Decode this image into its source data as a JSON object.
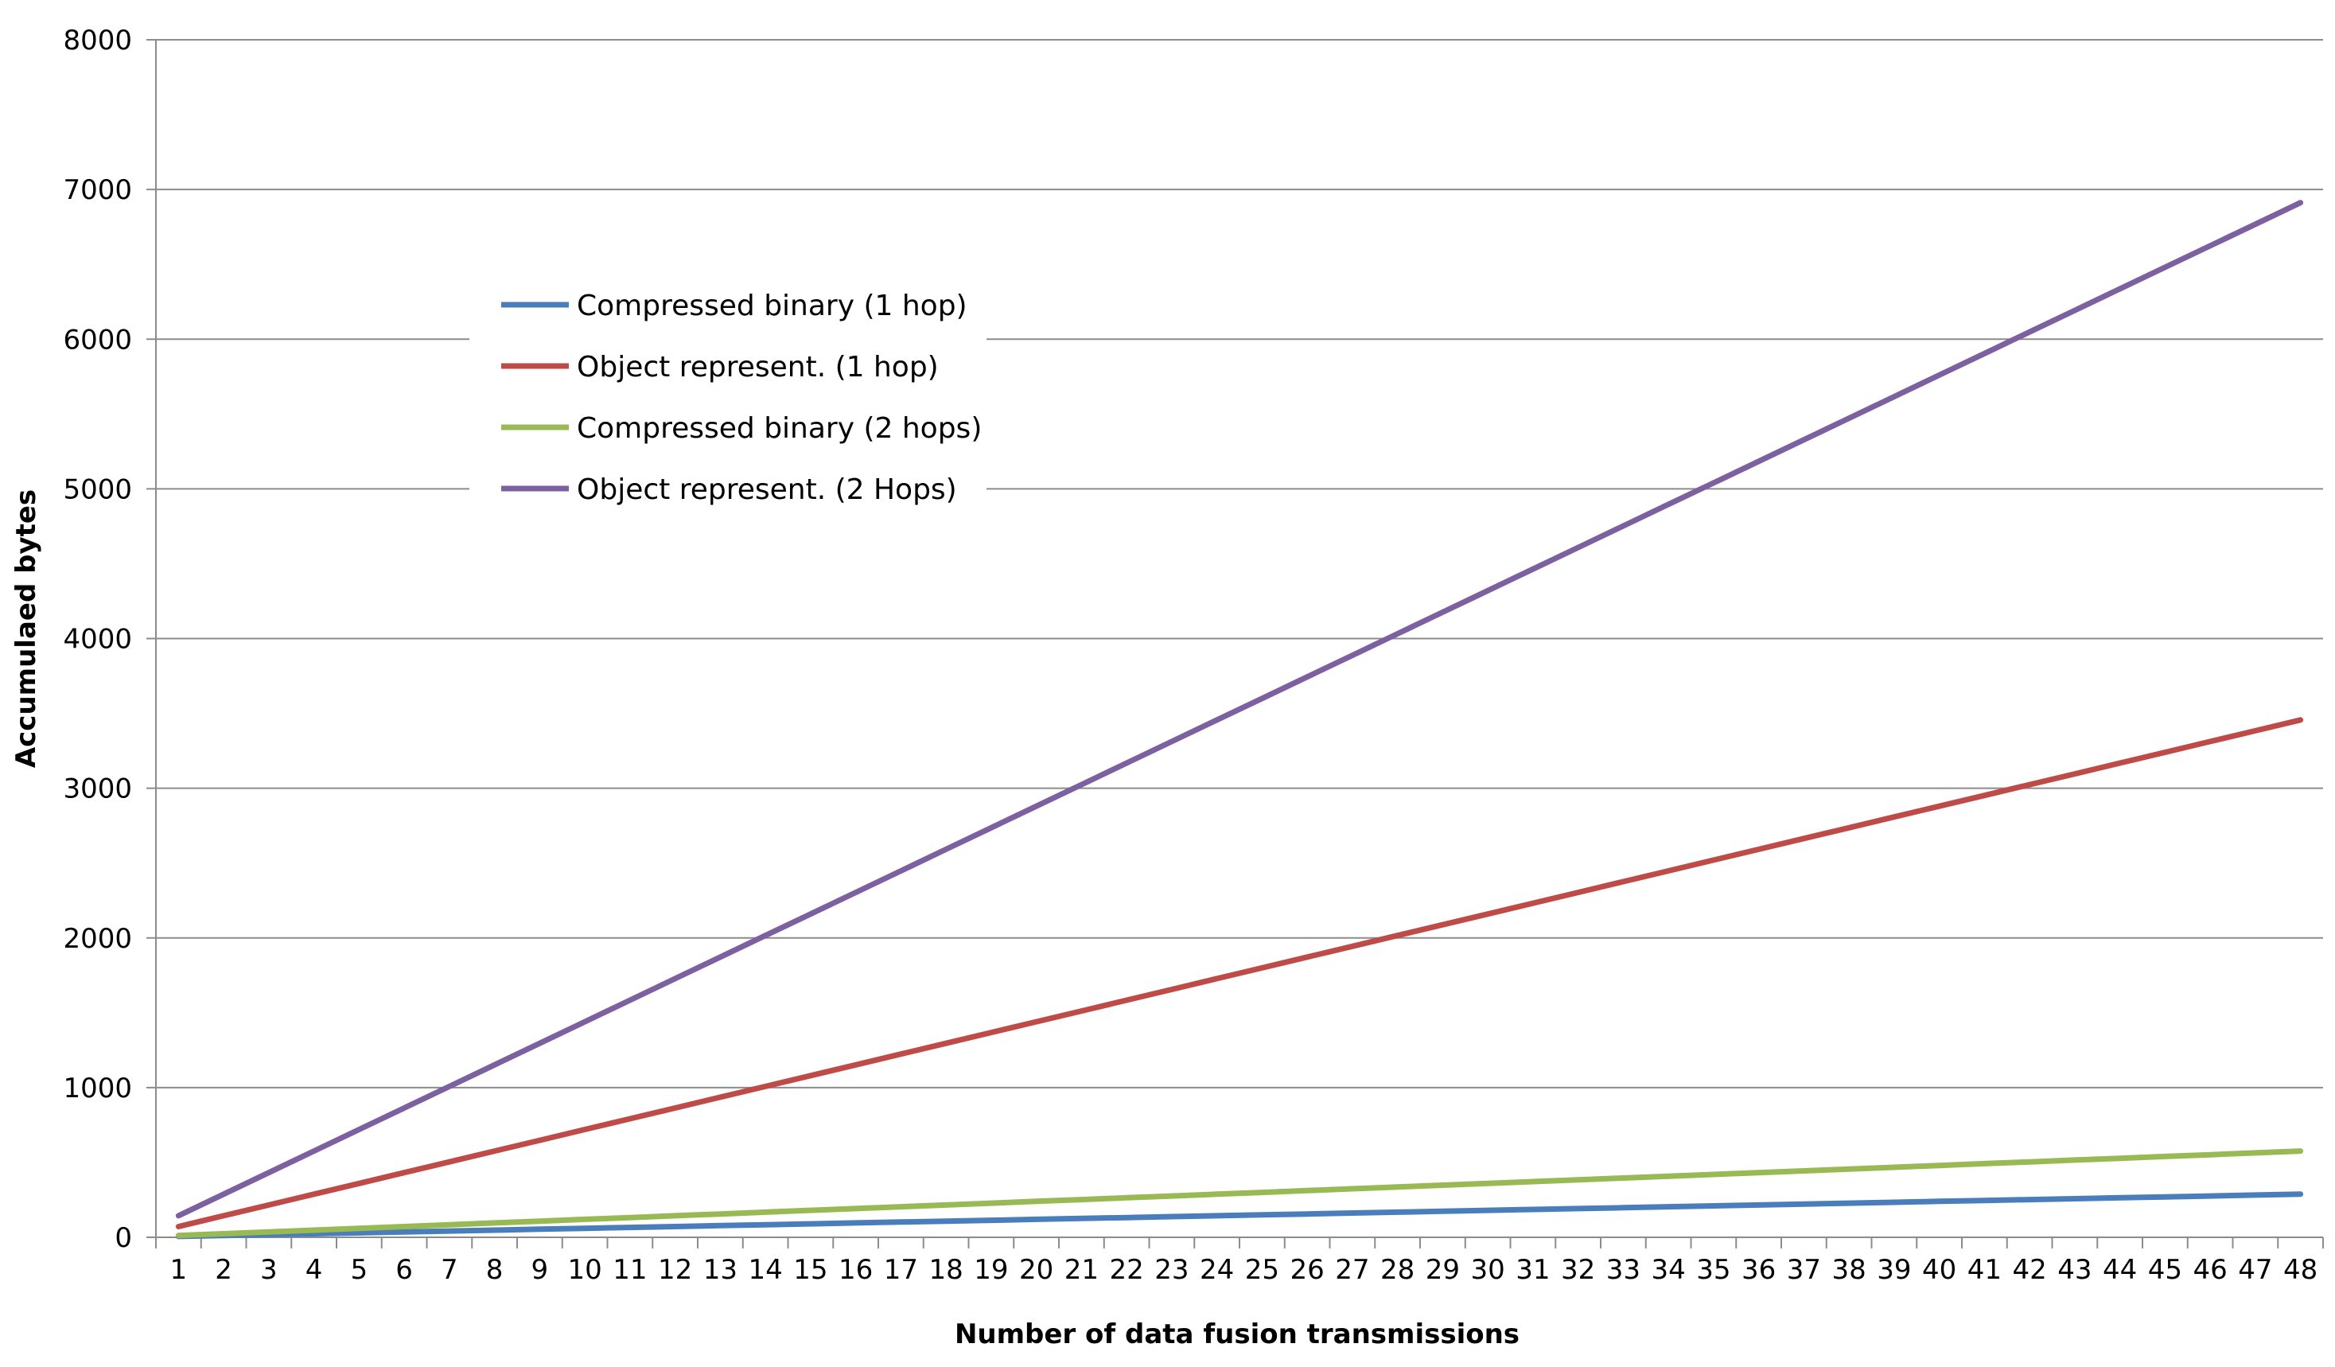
{
  "chart_data": {
    "type": "line",
    "title": "",
    "xlabel": "Number of data fusion transmissions",
    "ylabel": "Accumulaed bytes",
    "x": [
      1,
      2,
      3,
      4,
      5,
      6,
      7,
      8,
      9,
      10,
      11,
      12,
      13,
      14,
      15,
      16,
      17,
      18,
      19,
      20,
      21,
      22,
      23,
      24,
      25,
      26,
      27,
      28,
      29,
      30,
      31,
      32,
      33,
      34,
      35,
      36,
      37,
      38,
      39,
      40,
      41,
      42,
      43,
      44,
      45,
      46,
      47,
      48
    ],
    "ylim": [
      0,
      8000
    ],
    "yticks": [
      0,
      1000,
      2000,
      3000,
      4000,
      5000,
      6000,
      7000,
      8000
    ],
    "grid": true,
    "legend_position": "upper-left-inside",
    "series": [
      {
        "name": "Compressed binary (1 hop)",
        "color": "#4a7ebb",
        "start": 6,
        "per_step": 6
      },
      {
        "name": "Object represent. (1 hop)",
        "color": "#be4b48",
        "start": 72,
        "per_step": 72
      },
      {
        "name": "Compressed binary (2 hops)",
        "color": "#98b954",
        "start": 12,
        "per_step": 12
      },
      {
        "name": "Object represent. (2 Hops)",
        "color": "#7d60a0",
        "start": 144,
        "per_step": 144
      }
    ]
  }
}
